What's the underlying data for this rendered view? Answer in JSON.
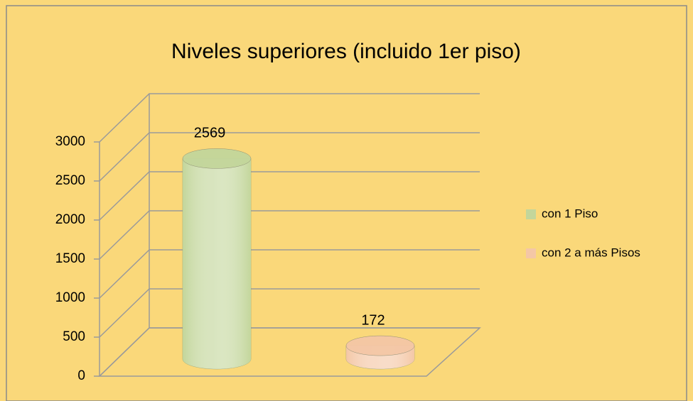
{
  "chart_data": {
    "type": "bar3d",
    "title": "Niveles superiores (incluido 1er piso)",
    "series": [
      {
        "name": "con 1 Piso",
        "color": "#c3d69b",
        "values": [
          2569
        ]
      },
      {
        "name": "con 2 a más Pisos",
        "color": "#f4c7a6",
        "values": [
          172
        ]
      }
    ],
    "ylim": [
      0,
      3000
    ],
    "yticks": [
      0,
      500,
      1000,
      1500,
      2000,
      2500,
      3000
    ],
    "grid": true,
    "legend": "right"
  }
}
